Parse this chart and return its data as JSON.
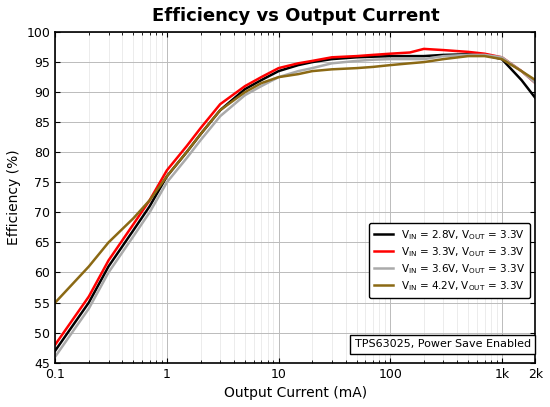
{
  "title": "Efficiency vs Output Current",
  "xlabel": "Output Current (mA)",
  "ylabel": "Efficiency (%)",
  "ylim": [
    45,
    100
  ],
  "xlim": [
    0.1,
    2000
  ],
  "annotation": "TPS63025, Power Save Enabled",
  "series": [
    {
      "label": "V_IN = 2.8V, V_OUT = 3.3V",
      "color": "#000000",
      "lw": 1.8,
      "x": [
        0.1,
        0.2,
        0.3,
        0.5,
        0.7,
        1.0,
        1.5,
        2.0,
        3.0,
        5.0,
        7.0,
        10,
        15,
        20,
        30,
        50,
        70,
        100,
        150,
        200,
        300,
        500,
        700,
        1000,
        1500,
        2000
      ],
      "y": [
        47,
        55,
        61,
        67,
        71,
        76,
        80,
        83,
        87,
        90.5,
        92,
        93.5,
        94.5,
        95,
        95.5,
        95.8,
        95.9,
        96,
        96,
        96,
        96.2,
        96.3,
        96.2,
        95.5,
        92,
        89
      ]
    },
    {
      "label": "V_IN = 3.3V, V_OUT = 3.3V",
      "color": "#ff0000",
      "lw": 1.8,
      "x": [
        0.1,
        0.2,
        0.3,
        0.5,
        0.7,
        1.0,
        1.5,
        2.0,
        3.0,
        5.0,
        7.0,
        10,
        15,
        20,
        30,
        50,
        70,
        100,
        150,
        200,
        300,
        500,
        700,
        1000,
        1500,
        2000
      ],
      "y": [
        48,
        56,
        62,
        68,
        72,
        77,
        81,
        84,
        88,
        91,
        92.5,
        94,
        94.8,
        95.2,
        95.8,
        96,
        96.2,
        96.4,
        96.6,
        97.2,
        97.0,
        96.7,
        96.4,
        95.8,
        93.5,
        91.5
      ]
    },
    {
      "label": "V_IN = 3.6V, V_OUT = 3.3V",
      "color": "#aaaaaa",
      "lw": 1.8,
      "x": [
        0.1,
        0.2,
        0.3,
        0.5,
        0.7,
        1.0,
        1.5,
        2.0,
        3.0,
        5.0,
        7.0,
        10,
        15,
        20,
        30,
        50,
        70,
        100,
        150,
        200,
        300,
        500,
        700,
        1000,
        1500,
        2000
      ],
      "y": [
        46,
        54,
        60,
        66,
        70,
        75,
        79,
        82,
        86,
        89.5,
        91,
        92.5,
        93.5,
        94,
        94.8,
        95.2,
        95.4,
        95.5,
        95.5,
        95.5,
        96.0,
        96.2,
        96.2,
        95.8,
        93.5,
        91.5
      ]
    },
    {
      "label": "V_IN = 4.2V, V_OUT = 3.3V",
      "color": "#8B6914",
      "lw": 1.8,
      "x": [
        0.1,
        0.2,
        0.3,
        0.5,
        0.7,
        1.0,
        1.5,
        2.0,
        3.0,
        5.0,
        7.0,
        10,
        15,
        20,
        30,
        50,
        70,
        100,
        150,
        200,
        300,
        500,
        700,
        1000,
        1500,
        2000
      ],
      "y": [
        55,
        61,
        65,
        69,
        72,
        76,
        80,
        83,
        87,
        90,
        91.5,
        92.5,
        93,
        93.5,
        93.8,
        94.0,
        94.2,
        94.5,
        94.8,
        95.0,
        95.5,
        96.0,
        96.0,
        95.5,
        93.5,
        92.0
      ]
    }
  ]
}
